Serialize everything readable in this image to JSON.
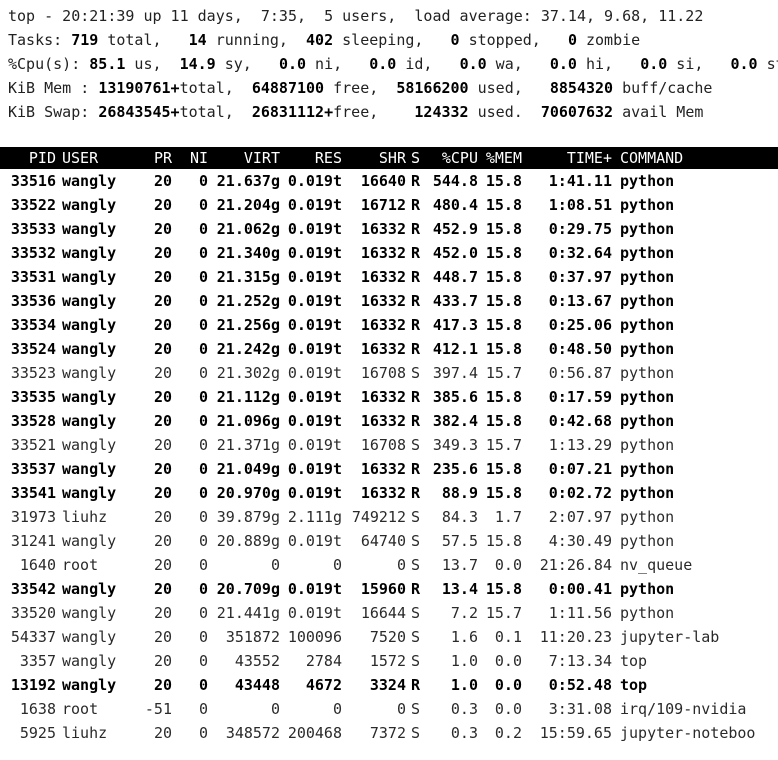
{
  "summary": {
    "line1": "top - 20:21:39 up 11 days,  7:35,  5 users,  load average: 37.14, 9.68, 11.22",
    "tasks": {
      "label": "Tasks: ",
      "total": "719",
      "total_lbl": " total,   ",
      "running": "14",
      "running_lbl": " running,  ",
      "sleeping": "402",
      "sleeping_lbl": " sleeping,   ",
      "stopped": "0",
      "stopped_lbl": " stopped,   ",
      "zombie": "0",
      "zombie_lbl": " zombie"
    },
    "cpu": {
      "label": "%Cpu(s): ",
      "us": "85.1",
      "us_lbl": " us,  ",
      "sy": "14.9",
      "sy_lbl": " sy,   ",
      "ni": "0.0",
      "ni_lbl": " ni,   ",
      "id": "0.0",
      "id_lbl": " id,   ",
      "wa": "0.0",
      "wa_lbl": " wa,   ",
      "hi": "0.0",
      "hi_lbl": " hi,   ",
      "si": "0.0",
      "si_lbl": " si,   ",
      "st": "0.0",
      "st_lbl": " st"
    },
    "mem": {
      "label": "KiB Mem : ",
      "total": "13190761+",
      "total_lbl": "total,  ",
      "free": "64887100",
      "free_lbl": " free,  ",
      "used": "58166200",
      "used_lbl": " used,   ",
      "buff": "8854320",
      "buff_lbl": " buff/cache"
    },
    "swap": {
      "label": "KiB Swap: ",
      "total": "26843545+",
      "total_lbl": "total,  ",
      "free": "26831112+",
      "free_lbl": "free,    ",
      "used": "124332",
      "used_lbl": " used.  ",
      "avail": "70607632",
      "avail_lbl": " avail Mem"
    }
  },
  "header": {
    "pid": "PID",
    "user": "USER",
    "pr": "PR",
    "ni": "NI",
    "virt": "VIRT",
    "res": "RES",
    "shr": "SHR",
    "s": "S",
    "cpu": "%CPU",
    "mem": "%MEM",
    "time": "TIME+",
    "command": "COMMAND"
  },
  "processes": [
    {
      "pid": "33516",
      "user": "wangly",
      "pr": "20",
      "ni": "0",
      "virt": "21.637g",
      "res": "0.019t",
      "shr": "16640",
      "s": "R",
      "cpu": "544.8",
      "mem": "15.8",
      "time": "1:41.11",
      "command": "python",
      "bold": true
    },
    {
      "pid": "33522",
      "user": "wangly",
      "pr": "20",
      "ni": "0",
      "virt": "21.204g",
      "res": "0.019t",
      "shr": "16712",
      "s": "R",
      "cpu": "480.4",
      "mem": "15.8",
      "time": "1:08.51",
      "command": "python",
      "bold": true
    },
    {
      "pid": "33533",
      "user": "wangly",
      "pr": "20",
      "ni": "0",
      "virt": "21.062g",
      "res": "0.019t",
      "shr": "16332",
      "s": "R",
      "cpu": "452.9",
      "mem": "15.8",
      "time": "0:29.75",
      "command": "python",
      "bold": true
    },
    {
      "pid": "33532",
      "user": "wangly",
      "pr": "20",
      "ni": "0",
      "virt": "21.340g",
      "res": "0.019t",
      "shr": "16332",
      "s": "R",
      "cpu": "452.0",
      "mem": "15.8",
      "time": "0:32.64",
      "command": "python",
      "bold": true
    },
    {
      "pid": "33531",
      "user": "wangly",
      "pr": "20",
      "ni": "0",
      "virt": "21.315g",
      "res": "0.019t",
      "shr": "16332",
      "s": "R",
      "cpu": "448.7",
      "mem": "15.8",
      "time": "0:37.97",
      "command": "python",
      "bold": true
    },
    {
      "pid": "33536",
      "user": "wangly",
      "pr": "20",
      "ni": "0",
      "virt": "21.252g",
      "res": "0.019t",
      "shr": "16332",
      "s": "R",
      "cpu": "433.7",
      "mem": "15.8",
      "time": "0:13.67",
      "command": "python",
      "bold": true
    },
    {
      "pid": "33534",
      "user": "wangly",
      "pr": "20",
      "ni": "0",
      "virt": "21.256g",
      "res": "0.019t",
      "shr": "16332",
      "s": "R",
      "cpu": "417.3",
      "mem": "15.8",
      "time": "0:25.06",
      "command": "python",
      "bold": true
    },
    {
      "pid": "33524",
      "user": "wangly",
      "pr": "20",
      "ni": "0",
      "virt": "21.242g",
      "res": "0.019t",
      "shr": "16332",
      "s": "R",
      "cpu": "412.1",
      "mem": "15.8",
      "time": "0:48.50",
      "command": "python",
      "bold": true
    },
    {
      "pid": "33523",
      "user": "wangly",
      "pr": "20",
      "ni": "0",
      "virt": "21.302g",
      "res": "0.019t",
      "shr": "16708",
      "s": "S",
      "cpu": "397.4",
      "mem": "15.7",
      "time": "0:56.87",
      "command": "python",
      "bold": false
    },
    {
      "pid": "33535",
      "user": "wangly",
      "pr": "20",
      "ni": "0",
      "virt": "21.112g",
      "res": "0.019t",
      "shr": "16332",
      "s": "R",
      "cpu": "385.6",
      "mem": "15.8",
      "time": "0:17.59",
      "command": "python",
      "bold": true
    },
    {
      "pid": "33528",
      "user": "wangly",
      "pr": "20",
      "ni": "0",
      "virt": "21.096g",
      "res": "0.019t",
      "shr": "16332",
      "s": "R",
      "cpu": "382.4",
      "mem": "15.8",
      "time": "0:42.68",
      "command": "python",
      "bold": true
    },
    {
      "pid": "33521",
      "user": "wangly",
      "pr": "20",
      "ni": "0",
      "virt": "21.371g",
      "res": "0.019t",
      "shr": "16708",
      "s": "S",
      "cpu": "349.3",
      "mem": "15.7",
      "time": "1:13.29",
      "command": "python",
      "bold": false
    },
    {
      "pid": "33537",
      "user": "wangly",
      "pr": "20",
      "ni": "0",
      "virt": "21.049g",
      "res": "0.019t",
      "shr": "16332",
      "s": "R",
      "cpu": "235.6",
      "mem": "15.8",
      "time": "0:07.21",
      "command": "python",
      "bold": true
    },
    {
      "pid": "33541",
      "user": "wangly",
      "pr": "20",
      "ni": "0",
      "virt": "20.970g",
      "res": "0.019t",
      "shr": "16332",
      "s": "R",
      "cpu": "88.9",
      "mem": "15.8",
      "time": "0:02.72",
      "command": "python",
      "bold": true
    },
    {
      "pid": "31973",
      "user": "liuhz",
      "pr": "20",
      "ni": "0",
      "virt": "39.879g",
      "res": "2.111g",
      "shr": "749212",
      "s": "S",
      "cpu": "84.3",
      "mem": "1.7",
      "time": "2:07.97",
      "command": "python",
      "bold": false
    },
    {
      "pid": "31241",
      "user": "wangly",
      "pr": "20",
      "ni": "0",
      "virt": "20.889g",
      "res": "0.019t",
      "shr": "64740",
      "s": "S",
      "cpu": "57.5",
      "mem": "15.8",
      "time": "4:30.49",
      "command": "python",
      "bold": false
    },
    {
      "pid": "1640",
      "user": "root",
      "pr": "20",
      "ni": "0",
      "virt": "0",
      "res": "0",
      "shr": "0",
      "s": "S",
      "cpu": "13.7",
      "mem": "0.0",
      "time": "21:26.84",
      "command": "nv_queue",
      "bold": false
    },
    {
      "pid": "33542",
      "user": "wangly",
      "pr": "20",
      "ni": "0",
      "virt": "20.709g",
      "res": "0.019t",
      "shr": "15960",
      "s": "R",
      "cpu": "13.4",
      "mem": "15.8",
      "time": "0:00.41",
      "command": "python",
      "bold": true
    },
    {
      "pid": "33520",
      "user": "wangly",
      "pr": "20",
      "ni": "0",
      "virt": "21.441g",
      "res": "0.019t",
      "shr": "16644",
      "s": "S",
      "cpu": "7.2",
      "mem": "15.7",
      "time": "1:11.56",
      "command": "python",
      "bold": false
    },
    {
      "pid": "54337",
      "user": "wangly",
      "pr": "20",
      "ni": "0",
      "virt": "351872",
      "res": "100096",
      "shr": "7520",
      "s": "S",
      "cpu": "1.6",
      "mem": "0.1",
      "time": "11:20.23",
      "command": "jupyter-lab",
      "bold": false
    },
    {
      "pid": "3357",
      "user": "wangly",
      "pr": "20",
      "ni": "0",
      "virt": "43552",
      "res": "2784",
      "shr": "1572",
      "s": "S",
      "cpu": "1.0",
      "mem": "0.0",
      "time": "7:13.34",
      "command": "top",
      "bold": false
    },
    {
      "pid": "13192",
      "user": "wangly",
      "pr": "20",
      "ni": "0",
      "virt": "43448",
      "res": "4672",
      "shr": "3324",
      "s": "R",
      "cpu": "1.0",
      "mem": "0.0",
      "time": "0:52.48",
      "command": "top",
      "bold": true
    },
    {
      "pid": "1638",
      "user": "root",
      "pr": "-51",
      "ni": "0",
      "virt": "0",
      "res": "0",
      "shr": "0",
      "s": "S",
      "cpu": "0.3",
      "mem": "0.0",
      "time": "3:31.08",
      "command": "irq/109-nvidia",
      "bold": false
    },
    {
      "pid": "5925",
      "user": "liuhz",
      "pr": "20",
      "ni": "0",
      "virt": "348572",
      "res": "200468",
      "shr": "7372",
      "s": "S",
      "cpu": "0.3",
      "mem": "0.2",
      "time": "15:59.65",
      "command": "jupyter-noteboo",
      "bold": false
    }
  ]
}
